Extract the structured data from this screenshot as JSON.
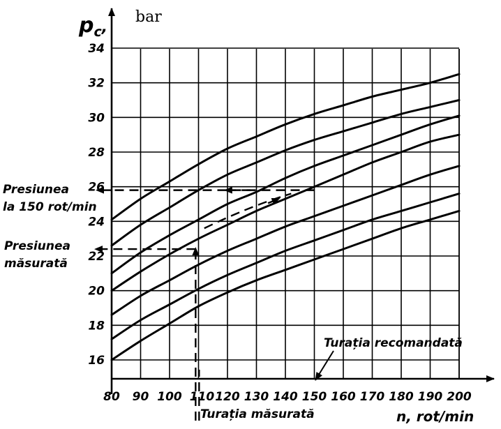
{
  "chart_data": {
    "type": "line",
    "y_axis_symbol": "p",
    "y_axis_subscript": "c",
    "y_axis_comma": ",",
    "y_unit": "bar",
    "x_axis_label": "n, rot/min",
    "xlim": [
      80,
      200
    ],
    "ylim": [
      15,
      34
    ],
    "grid": true,
    "x_ticks": [
      "80",
      "90",
      "100",
      "110",
      "120",
      "130",
      "140",
      "150",
      "160",
      "170",
      "180",
      "190",
      "200"
    ],
    "y_ticks": [
      "16",
      "18",
      "20",
      "22",
      "24",
      "26",
      "28",
      "30",
      "32",
      "34"
    ],
    "x": [
      80,
      90,
      100,
      110,
      120,
      130,
      140,
      150,
      160,
      170,
      180,
      190,
      200
    ],
    "series": [
      {
        "values": [
          24.1,
          25.3,
          26.3,
          27.3,
          28.2,
          28.9,
          29.6,
          30.2,
          30.7,
          31.2,
          31.6,
          32.0,
          32.5
        ]
      },
      {
        "values": [
          22.6,
          23.8,
          24.8,
          25.8,
          26.7,
          27.4,
          28.1,
          28.7,
          29.2,
          29.7,
          30.2,
          30.6,
          31.0
        ]
      },
      {
        "values": [
          21.0,
          22.2,
          23.2,
          24.1,
          25.0,
          25.7,
          26.5,
          27.2,
          27.8,
          28.4,
          29.0,
          29.6,
          30.1
        ]
      },
      {
        "values": [
          20.0,
          21.1,
          22.1,
          23.0,
          23.8,
          24.6,
          25.3,
          26.0,
          26.7,
          27.4,
          28.0,
          28.6,
          29.0
        ]
      },
      {
        "values": [
          18.6,
          19.7,
          20.6,
          21.5,
          22.3,
          23.0,
          23.7,
          24.3,
          24.9,
          25.5,
          26.1,
          26.7,
          27.2
        ]
      },
      {
        "values": [
          17.2,
          18.3,
          19.2,
          20.1,
          20.9,
          21.6,
          22.3,
          22.9,
          23.5,
          24.1,
          24.6,
          25.1,
          25.6
        ]
      },
      {
        "values": [
          16.0,
          17.1,
          18.1,
          19.1,
          19.9,
          20.6,
          21.2,
          21.8,
          22.4,
          23.0,
          23.6,
          24.1,
          24.6
        ]
      }
    ],
    "reference": {
      "measured_speed": 109,
      "measured_pressure": 22.4,
      "target_speed": 150,
      "pressure_at_150": 25.8
    },
    "annotations": {
      "pressure_at_150_line1": "Presiunea",
      "pressure_at_150_line2": "la 150 rot/min",
      "measured_pressure_line1": "Presiunea",
      "measured_pressure_line2": "măsurată",
      "recommended_speed": "Turația recomandată",
      "measured_speed": "Turația măsurată"
    }
  }
}
